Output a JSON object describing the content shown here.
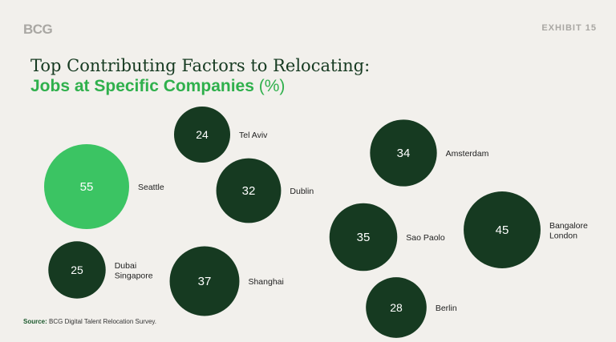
{
  "header": {
    "logo": "BCG",
    "exhibit": "EXHIBIT 15"
  },
  "title": {
    "line1": "Top Contributing Factors to Relocating:",
    "line2": "Jobs at Specific Companies",
    "unit": "(%)"
  },
  "source": {
    "label": "Source:",
    "text": "BCG Digital Talent Relocation Survey."
  },
  "colors": {
    "highlight": "#3bc463",
    "bubble": "#163a21",
    "bubble_text": "#ffffff",
    "highlight_text": "#ffffff"
  },
  "chart_data": {
    "type": "bubble",
    "title": "Top Contributing Factors to Relocating: Jobs at Specific Companies (%)",
    "unit": "%",
    "points": [
      {
        "labels": [
          "Tel Aviv"
        ],
        "value": 24
      },
      {
        "labels": [
          "Seattle"
        ],
        "value": 55,
        "highlight": true
      },
      {
        "labels": [
          "Dublin"
        ],
        "value": 32
      },
      {
        "labels": [
          "Dubai",
          "Singapore"
        ],
        "value": 25
      },
      {
        "labels": [
          "Shanghai"
        ],
        "value": 37
      },
      {
        "labels": [
          "Amsterdam"
        ],
        "value": 34
      },
      {
        "labels": [
          "Sao Paolo"
        ],
        "value": 35
      },
      {
        "labels": [
          "Berlin"
        ],
        "value": 28
      },
      {
        "labels": [
          "Bangalore",
          "London"
        ],
        "value": 45
      }
    ]
  }
}
